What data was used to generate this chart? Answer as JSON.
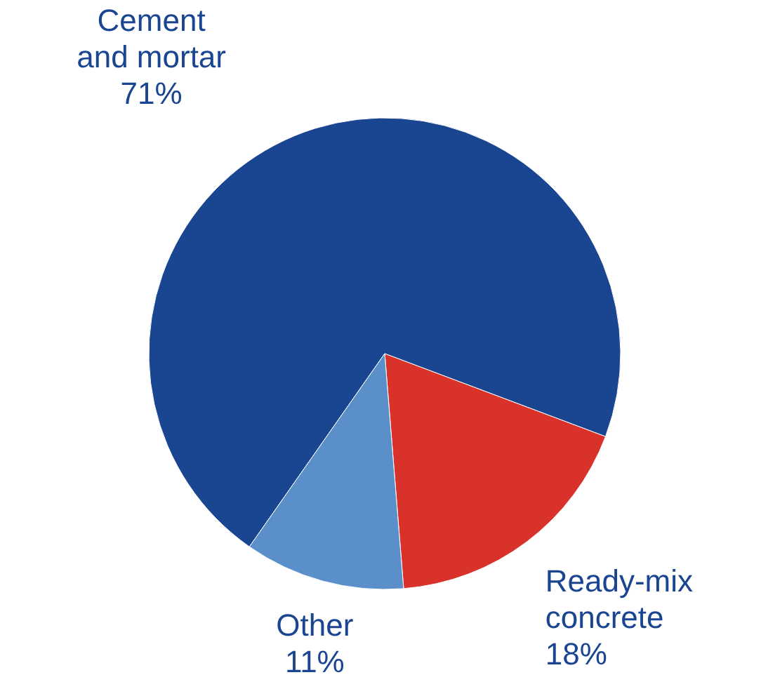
{
  "chart_data": {
    "type": "pie",
    "categories": [
      "Cement and mortar",
      "Ready-mix concrete",
      "Other"
    ],
    "values": [
      71,
      18,
      11
    ],
    "colors": [
      "#1a4591",
      "#d9322a",
      "#5b8fc9"
    ],
    "value_labels": [
      "71%",
      "18%",
      "11%"
    ]
  }
}
